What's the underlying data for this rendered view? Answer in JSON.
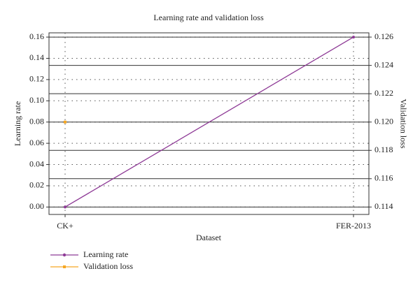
{
  "chart_data": {
    "type": "line",
    "title": "Learning rate and validation loss",
    "x_label": "Dataset",
    "y_label": "Learning rate",
    "y2_label": "Validation loss",
    "categories": [
      "CK+",
      "FER-2013"
    ],
    "series": [
      {
        "name": "Learning rate",
        "color": "#8e3a96",
        "values": [
          0.0,
          0.16
        ]
      },
      {
        "name": "Validation loss",
        "color": "#f5a623",
        "axis": "y2",
        "values": [
          0.12,
          null
        ]
      }
    ],
    "ylim": [
      -0.007,
      0.164
    ],
    "yticks": [
      {
        "value": 0,
        "label": "0.00"
      },
      0.02,
      0.04,
      0.06,
      0.08,
      {
        "value": 0.1,
        "label": "0.10"
      },
      0.12,
      0.14,
      0.16
    ],
    "y2lim": [
      0.113475,
      0.1263
    ],
    "y2ticks": [
      0.114,
      0.116,
      0.118,
      {
        "value": 0.12,
        "label": "0.120"
      },
      0.122,
      0.124,
      0.126
    ],
    "legend": "bottom-left"
  }
}
